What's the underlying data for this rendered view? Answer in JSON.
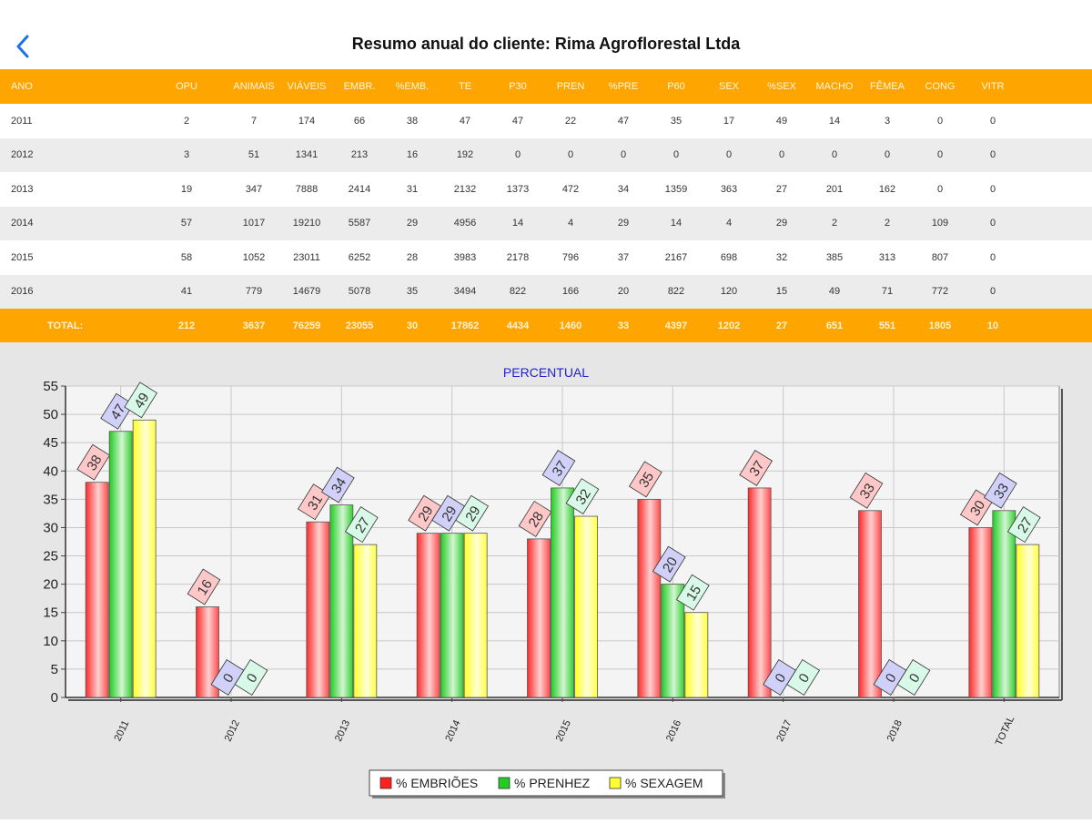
{
  "nav": {
    "title": "Resumo anual do cliente: Rima Agroflorestal Ltda"
  },
  "table": {
    "columns": [
      "ANO",
      "OPU",
      "ANIMAIS",
      "VIÁVEIS",
      "EMBR.",
      "%EMB.",
      "TE",
      "P30",
      "PREN",
      "%PRE",
      "P60",
      "SEX",
      "%SEX",
      "MACHO",
      "FÊMEA",
      "CONG",
      "VITR"
    ],
    "rows": [
      [
        "2011",
        "2",
        "7",
        "174",
        "66",
        "38",
        "47",
        "47",
        "22",
        "47",
        "35",
        "17",
        "49",
        "14",
        "3",
        "0",
        "0"
      ],
      [
        "2012",
        "3",
        "51",
        "1341",
        "213",
        "16",
        "192",
        "0",
        "0",
        "0",
        "0",
        "0",
        "0",
        "0",
        "0",
        "0",
        "0"
      ],
      [
        "2013",
        "19",
        "347",
        "7888",
        "2414",
        "31",
        "2132",
        "1373",
        "472",
        "34",
        "1359",
        "363",
        "27",
        "201",
        "162",
        "0",
        "0"
      ],
      [
        "2014",
        "57",
        "1017",
        "19210",
        "5587",
        "29",
        "4956",
        "14",
        "4",
        "29",
        "14",
        "4",
        "29",
        "2",
        "2",
        "109",
        "0"
      ],
      [
        "2015",
        "58",
        "1052",
        "23011",
        "6252",
        "28",
        "3983",
        "2178",
        "796",
        "37",
        "2167",
        "698",
        "32",
        "385",
        "313",
        "807",
        "0"
      ],
      [
        "2016",
        "41",
        "779",
        "14679",
        "5078",
        "35",
        "3494",
        "822",
        "166",
        "20",
        "822",
        "120",
        "15",
        "49",
        "71",
        "772",
        "0"
      ]
    ],
    "total": [
      "TOTAL:",
      "212",
      "3637",
      "76259",
      "23055",
      "30",
      "17862",
      "4434",
      "1460",
      "33",
      "4397",
      "1202",
      "27",
      "651",
      "551",
      "1805",
      "10"
    ]
  },
  "chart_data": {
    "type": "bar",
    "title": "PERCENTUAL",
    "categories": [
      "2011",
      "2012",
      "2013",
      "2014",
      "2015",
      "2016",
      "2017",
      "2018",
      "TOTAL"
    ],
    "series": [
      {
        "name": "% EMBRIÕES",
        "color": "#ff2020",
        "values": [
          38,
          16,
          31,
          29,
          28,
          35,
          37,
          33,
          30
        ]
      },
      {
        "name": "% PRENHEZ",
        "color": "#22cc22",
        "values": [
          47,
          0,
          34,
          29,
          37,
          20,
          0,
          0,
          33
        ]
      },
      {
        "name": "% SEXAGEM",
        "color": "#ffff30",
        "values": [
          49,
          0,
          27,
          29,
          32,
          15,
          0,
          0,
          27
        ]
      }
    ],
    "ylim": [
      0,
      55
    ],
    "yticks": [
      0,
      5,
      10,
      15,
      20,
      25,
      30,
      35,
      40,
      45,
      50,
      55
    ],
    "legend": "bottom-center"
  }
}
